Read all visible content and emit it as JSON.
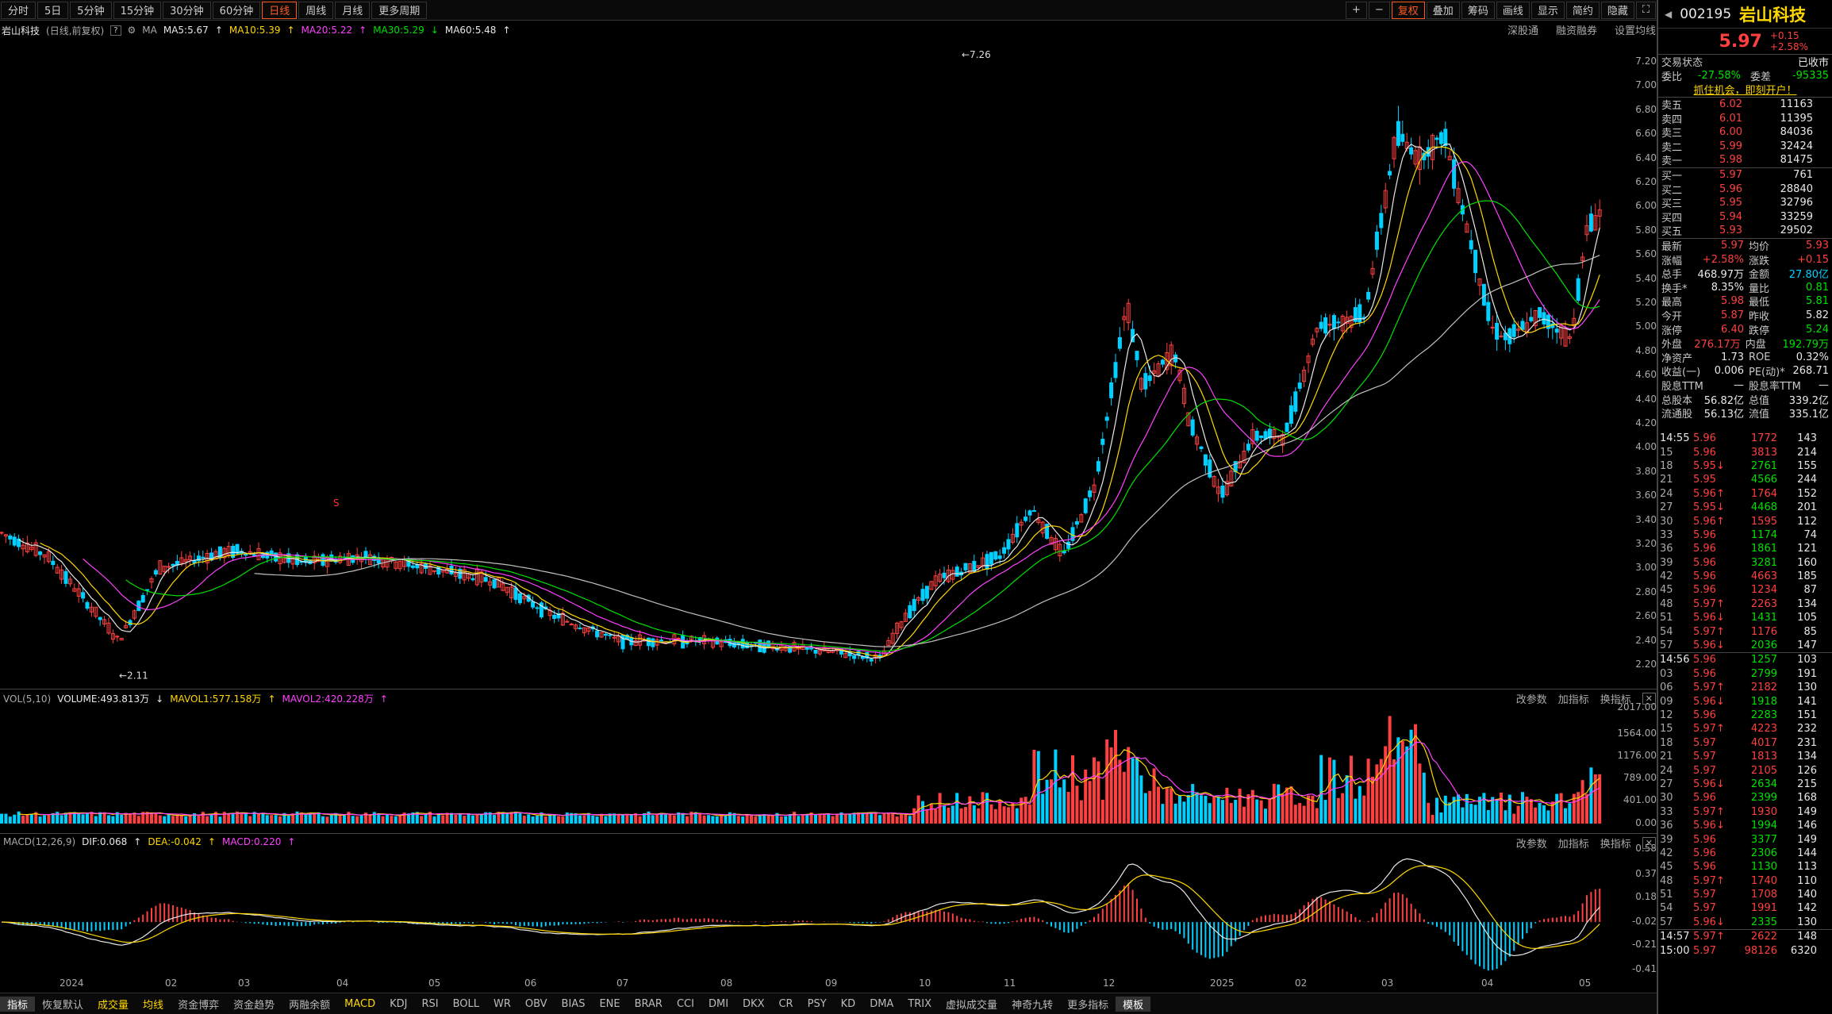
{
  "toolbar": {
    "periods": [
      "分时",
      "5日",
      "5分钟",
      "15分钟",
      "30分钟",
      "60分钟",
      "日线",
      "周线",
      "月线",
      "更多周期"
    ],
    "active_period": "日线",
    "right_tools": [
      "+",
      "−",
      "复权",
      "叠加",
      "筹码",
      "画线",
      "显示",
      "简约",
      "隐藏"
    ]
  },
  "legend": {
    "name": "岩山科技",
    "mode": "(日线,前复权)",
    "ma": "MA",
    "ma5": "MA5:5.67",
    "ma10": "MA10:5.39",
    "ma20": "MA20:5.22",
    "ma30": "MA30:5.29",
    "ma60": "MA60:5.48",
    "right": [
      "深股通",
      "融资融券",
      "设置均线"
    ]
  },
  "price_axis": [
    "7.20",
    "7.00",
    "6.80",
    "6.60",
    "6.40",
    "6.20",
    "6.00",
    "5.80",
    "5.60",
    "5.40",
    "5.20",
    "5.00",
    "4.80",
    "4.60",
    "4.40",
    "4.20",
    "4.00",
    "3.80",
    "3.60",
    "3.40",
    "3.20",
    "3.00",
    "2.80",
    "2.60",
    "2.40",
    "2.20"
  ],
  "annot": {
    "high": "7.26",
    "low": "2.11",
    "s_mark": "S"
  },
  "vol": {
    "title": "VOL(5,10)",
    "volume": "VOLUME:493.813万",
    "mavol1": "MAVOL1:577.158万",
    "mavol2": "MAVOL2:420.228万",
    "axis": [
      "2017.00",
      "1564.00",
      "1176.00",
      "789.00",
      "401.00",
      "0.00"
    ]
  },
  "macd": {
    "title": "MACD(12,26,9)",
    "dif": "DIF:0.068",
    "dea": "DEA:-0.042",
    "macd": "MACD:0.220",
    "axis": [
      "0.58",
      "0.37",
      "0.18",
      "-0.02",
      "-0.21",
      "-0.41"
    ]
  },
  "pane_tools": [
    "改参数",
    "加指标",
    "换指标"
  ],
  "xaxis": [
    "2024",
    "02",
    "03",
    "04",
    "05",
    "06",
    "07",
    "08",
    "09",
    "10",
    "11",
    "12",
    "2025",
    "02",
    "03",
    "04",
    "05"
  ],
  "bottom": [
    "指标",
    "恢复默认",
    "成交量",
    "均线",
    "资金博弈",
    "资金趋势",
    "两融余额",
    "MACD",
    "KDJ",
    "RSI",
    "BOLL",
    "WR",
    "OBV",
    "BIAS",
    "ENE",
    "BRAR",
    "CCI",
    "DMI",
    "DKX",
    "CR",
    "PSY",
    "KD",
    "DMA",
    "TRIX",
    "虚拟成交量",
    "神奇九转",
    "更多指标",
    "模板"
  ],
  "quote": {
    "code": "002195",
    "name": "岩山科技",
    "price": "5.97",
    "change": "+0.15",
    "pct": "+2.58%",
    "status_label": "交易状态",
    "status": "已收市",
    "wb_label": "委比",
    "wb": "-27.58%",
    "wc_label": "委差",
    "wc": "-95335",
    "promo": "抓住机会，即刻开户！",
    "asks": [
      {
        "l": "卖五",
        "p": "6.02",
        "v": "11163"
      },
      {
        "l": "卖四",
        "p": "6.01",
        "v": "11395"
      },
      {
        "l": "卖三",
        "p": "6.00",
        "v": "84036"
      },
      {
        "l": "卖二",
        "p": "5.99",
        "v": "32424"
      },
      {
        "l": "卖一",
        "p": "5.98",
        "v": "81475"
      }
    ],
    "bids": [
      {
        "l": "买一",
        "p": "5.97",
        "v": "761"
      },
      {
        "l": "买二",
        "p": "5.96",
        "v": "28840"
      },
      {
        "l": "买三",
        "p": "5.95",
        "v": "32796"
      },
      {
        "l": "买四",
        "p": "5.94",
        "v": "33259"
      },
      {
        "l": "买五",
        "p": "5.93",
        "v": "29502"
      }
    ],
    "stats": [
      [
        "最新",
        "5.97",
        "red",
        "均价",
        "5.93",
        "red"
      ],
      [
        "涨幅",
        "+2.58%",
        "red",
        "涨跌",
        "+0.15",
        "red"
      ],
      [
        "总手",
        "468.97万",
        "wht",
        "金额",
        "27.80亿",
        "cyn"
      ],
      [
        "换手*",
        "8.35%",
        "wht",
        "量比",
        "0.81",
        "grn"
      ],
      [
        "最高",
        "5.98",
        "red",
        "最低",
        "5.81",
        "grn"
      ],
      [
        "今开",
        "5.87",
        "red",
        "昨收",
        "5.82",
        "wht"
      ],
      [
        "涨停",
        "6.40",
        "red",
        "跌停",
        "5.24",
        "grn"
      ],
      [
        "外盘",
        "276.17万",
        "red",
        "内盘",
        "192.79万",
        "grn"
      ],
      [
        "净资产",
        "1.73",
        "wht",
        "ROE",
        "0.32%",
        "wht"
      ],
      [
        "收益(一)",
        "0.006",
        "wht",
        "PE(动)*",
        "268.71",
        "wht"
      ],
      [
        "股息TTM",
        "—",
        "wht",
        "股息率TTM",
        "—",
        "wht"
      ],
      [
        "总股本",
        "56.82亿",
        "wht",
        "总值",
        "339.2亿",
        "wht"
      ],
      [
        "流通股",
        "56.13亿",
        "wht",
        "流值",
        "335.1亿",
        "wht"
      ]
    ],
    "ticks": [
      [
        "14:55",
        "5.96",
        "1772",
        "143",
        "r"
      ],
      [
        "15",
        "5.96",
        "3813",
        "214",
        "r"
      ],
      [
        "18",
        "5.95↓",
        "2761",
        "155",
        "g"
      ],
      [
        "21",
        "5.95",
        "4566",
        "244",
        "g"
      ],
      [
        "24",
        "5.96↑",
        "1764",
        "152",
        "r"
      ],
      [
        "27",
        "5.95↓",
        "4468",
        "201",
        "g"
      ],
      [
        "30",
        "5.96↑",
        "1595",
        "112",
        "r"
      ],
      [
        "33",
        "5.96",
        "1174",
        "74",
        "g"
      ],
      [
        "36",
        "5.96",
        "1861",
        "121",
        "g"
      ],
      [
        "39",
        "5.96",
        "3281",
        "160",
        "g"
      ],
      [
        "42",
        "5.96",
        "4663",
        "185",
        "r"
      ],
      [
        "45",
        "5.96",
        "1234",
        "87",
        "r"
      ],
      [
        "48",
        "5.97↑",
        "2263",
        "134",
        "r"
      ],
      [
        "51",
        "5.96↓",
        "1431",
        "105",
        "g"
      ],
      [
        "54",
        "5.97↑",
        "1176",
        "85",
        "r"
      ],
      [
        "57",
        "5.96↓",
        "2036",
        "147",
        "g"
      ],
      [
        "14:56",
        "5.96",
        "1257",
        "103",
        "g"
      ],
      [
        "03",
        "5.96",
        "2799",
        "191",
        "g"
      ],
      [
        "06",
        "5.97↑",
        "2182",
        "130",
        "r"
      ],
      [
        "09",
        "5.96↓",
        "1918",
        "141",
        "g"
      ],
      [
        "12",
        "5.96",
        "2283",
        "151",
        "g"
      ],
      [
        "15",
        "5.97↑",
        "4223",
        "232",
        "r"
      ],
      [
        "18",
        "5.97",
        "4017",
        "231",
        "r"
      ],
      [
        "21",
        "5.97",
        "1813",
        "134",
        "r"
      ],
      [
        "24",
        "5.97",
        "2105",
        "126",
        "r"
      ],
      [
        "27",
        "5.96↓",
        "2634",
        "215",
        "g"
      ],
      [
        "30",
        "5.96",
        "2399",
        "168",
        "g"
      ],
      [
        "33",
        "5.97↑",
        "1930",
        "149",
        "r"
      ],
      [
        "36",
        "5.96↓",
        "1994",
        "146",
        "g"
      ],
      [
        "39",
        "5.96",
        "3377",
        "149",
        "g"
      ],
      [
        "42",
        "5.96",
        "2306",
        "144",
        "g"
      ],
      [
        "45",
        "5.96",
        "1130",
        "113",
        "g"
      ],
      [
        "48",
        "5.97↑",
        "1740",
        "110",
        "r"
      ],
      [
        "51",
        "5.97",
        "1708",
        "140",
        "r"
      ],
      [
        "54",
        "5.97",
        "1991",
        "142",
        "r"
      ],
      [
        "57",
        "5.96↓",
        "2335",
        "130",
        "g"
      ],
      [
        "14:57",
        "5.97↑",
        "2622",
        "148",
        "r"
      ],
      [
        "15:00",
        "5.97",
        "98126",
        "6320",
        "r"
      ]
    ]
  },
  "colors": {
    "up": "#ff4040",
    "down": "#00d0ff",
    "ma5": "#e8e8e8",
    "ma10": "#ffd700",
    "ma20": "#ff40ff",
    "ma30": "#00e000",
    "ma60": "#c0c0c0"
  }
}
